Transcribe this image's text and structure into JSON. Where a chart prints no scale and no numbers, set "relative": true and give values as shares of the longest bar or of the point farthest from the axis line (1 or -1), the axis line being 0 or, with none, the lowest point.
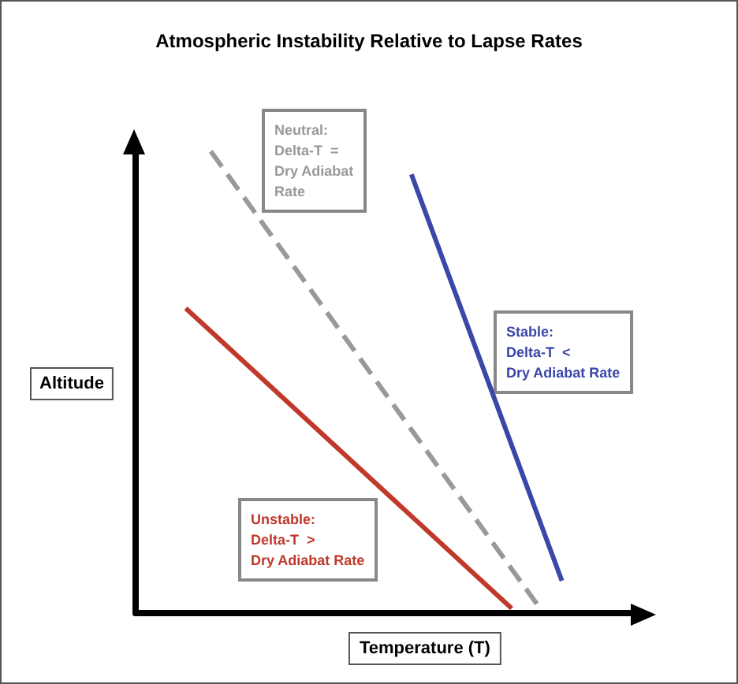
{
  "chart_data": {
    "type": "line",
    "title": "Atmospheric Instability Relative to Lapse Rates",
    "xlabel": "Temperature (T)",
    "ylabel": "Altitude",
    "relative": true,
    "grid": false,
    "marker": "none",
    "categories": [
      null,
      null,
      null,
      null,
      null,
      null,
      null,
      null,
      null,
      null,
      null,
      null,
      null,
      null,
      null,
      null,
      null,
      null,
      null,
      null,
      null
    ],
    "series": [
      {
        "color": "#c0392b",
        "line_style": "solid",
        "values": [
          null,
          null,
          0.66,
          null,
          null,
          null,
          null,
          null,
          null,
          null,
          null,
          null,
          null,
          null,
          null,
          0.01,
          null,
          null,
          null,
          null,
          null
        ]
      },
      {
        "color": "#999999",
        "line_style": "dashed",
        "values": [
          null,
          null,
          null,
          1,
          null,
          null,
          null,
          null,
          null,
          null,
          null,
          null,
          null,
          null,
          null,
          null,
          0.02,
          null,
          null,
          null,
          null
        ]
      },
      {
        "color": "#3a47a8",
        "line_style": "solid",
        "values": [
          null,
          null,
          null,
          null,
          null,
          null,
          null,
          null,
          null,
          null,
          null,
          0.95,
          null,
          null,
          null,
          null,
          null,
          0.07,
          null,
          null,
          null
        ]
      }
    ],
    "annotations": [
      "Unstable:\nDelta-T  >\nDry Adiabat Rate",
      "Neutral:\nDelta-T  =\nDry Adiabat\nRate",
      "Stable:\nDelta-T  <\nDry Adiabat Rate"
    ]
  }
}
